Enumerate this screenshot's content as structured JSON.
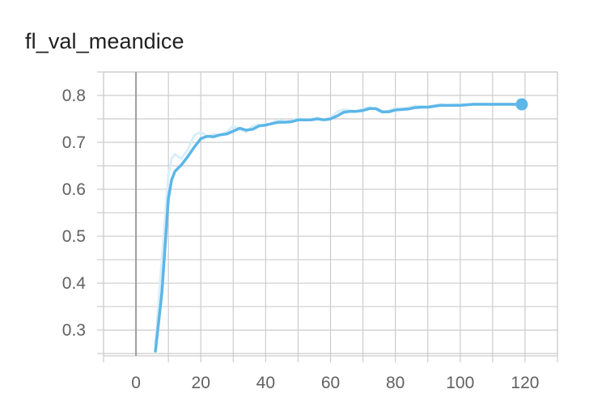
{
  "title": "fl_val_meandice",
  "chart_data": {
    "type": "line",
    "title": "fl_val_meandice",
    "xlabel": "",
    "ylabel": "",
    "xlim": [
      -10,
      130
    ],
    "ylim": [
      0.245,
      0.85
    ],
    "x_ticks": [
      0,
      20,
      40,
      60,
      80,
      100,
      120
    ],
    "y_ticks": [
      0.3,
      0.4,
      0.5,
      0.6,
      0.7,
      0.8
    ],
    "x_tick_labels": [
      "0",
      "20",
      "40",
      "60",
      "80",
      "100",
      "120"
    ],
    "y_tick_labels": [
      "0.3",
      "0.4",
      "0.5",
      "0.6",
      "0.7",
      "0.8"
    ],
    "grid": true,
    "colors": {
      "smoothed": "#5cb6e8",
      "raw": "#d9eef8",
      "grid": "#cccccc",
      "zero_axis": "#9e9e9e"
    },
    "series": [
      {
        "role": "raw",
        "x": [
          6,
          8,
          10,
          11,
          12,
          14,
          16,
          18,
          20,
          22,
          24,
          26,
          28,
          30,
          32,
          34,
          36,
          38,
          40,
          42,
          44,
          46,
          48,
          50,
          52,
          54,
          56,
          58,
          60,
          62,
          64,
          66,
          68,
          70,
          72,
          74,
          76,
          78,
          80,
          82,
          84,
          86,
          88,
          90,
          92,
          94,
          96,
          98,
          100,
          102,
          104,
          106,
          108,
          110,
          112,
          114,
          116,
          118,
          120
        ],
        "y": [
          0.27,
          0.45,
          0.63,
          0.665,
          0.675,
          0.665,
          0.685,
          0.715,
          0.722,
          0.712,
          0.718,
          0.715,
          0.722,
          0.735,
          0.728,
          0.722,
          0.735,
          0.738,
          0.735,
          0.742,
          0.748,
          0.744,
          0.746,
          0.752,
          0.747,
          0.75,
          0.752,
          0.748,
          0.752,
          0.765,
          0.77,
          0.768,
          0.766,
          0.772,
          0.775,
          0.77,
          0.763,
          0.768,
          0.773,
          0.772,
          0.774,
          0.778,
          0.776,
          0.775,
          0.779,
          0.781,
          0.779,
          0.78,
          0.781,
          0.781,
          0.782,
          0.782,
          0.782,
          0.782,
          0.782,
          0.782,
          0.782,
          0.782,
          0.782
        ]
      },
      {
        "role": "smoothed",
        "x": [
          6,
          8,
          9,
          10,
          11,
          12,
          13,
          14,
          16,
          18,
          20,
          22,
          24,
          26,
          28,
          30,
          32,
          34,
          36,
          38,
          40,
          42,
          44,
          46,
          48,
          50,
          52,
          54,
          56,
          58,
          60,
          62,
          64,
          66,
          68,
          70,
          72,
          74,
          76,
          78,
          80,
          82,
          84,
          86,
          88,
          90,
          92,
          94,
          96,
          98,
          100,
          102,
          104,
          106,
          108,
          110,
          112,
          114,
          116,
          118,
          120
        ],
        "y": [
          0.255,
          0.38,
          0.48,
          0.58,
          0.62,
          0.638,
          0.645,
          0.652,
          0.67,
          0.69,
          0.708,
          0.713,
          0.712,
          0.716,
          0.718,
          0.724,
          0.73,
          0.726,
          0.728,
          0.735,
          0.737,
          0.74,
          0.743,
          0.743,
          0.744,
          0.748,
          0.748,
          0.748,
          0.75,
          0.748,
          0.75,
          0.756,
          0.764,
          0.766,
          0.766,
          0.768,
          0.772,
          0.772,
          0.765,
          0.765,
          0.769,
          0.77,
          0.771,
          0.774,
          0.775,
          0.775,
          0.777,
          0.779,
          0.779,
          0.779,
          0.779,
          0.78,
          0.781,
          0.781,
          0.781,
          0.781,
          0.781,
          0.781,
          0.781,
          0.781,
          0.781
        ]
      }
    ],
    "last_point": {
      "x": 119,
      "y": 0.781
    }
  }
}
